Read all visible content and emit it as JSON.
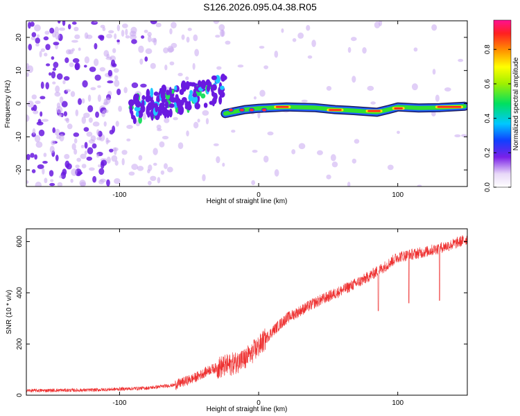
{
  "title": "S126.2026.095.04.38.R05",
  "colors": {
    "snr_line": "#ee3030",
    "ridge_core": "#ff2020",
    "ridge_mid": "#30e030",
    "ridge_edge": "#2060ff",
    "blob_dark": "#6a1ae0",
    "blob_light": "#c8a8f0"
  },
  "chart_data": [
    {
      "type": "heatmap",
      "name": "spectrogram",
      "xlabel": "Height of straight line (km)",
      "ylabel": "Frequency (Hz)",
      "xlim": [
        -167,
        150
      ],
      "ylim": [
        -25,
        25
      ],
      "xticks": [
        -100,
        0,
        100
      ],
      "xtick_labels": [
        "-100",
        "0",
        "100"
      ],
      "yticks": [
        -20,
        -10,
        0,
        10,
        20
      ],
      "ytick_labels": [
        "-20",
        "-10",
        "0",
        "10",
        "20"
      ],
      "ridge_trace": [
        {
          "x": -24,
          "f": -3.0
        },
        {
          "x": -10,
          "f": -1.8
        },
        {
          "x": 0,
          "f": -1.4
        },
        {
          "x": 20,
          "f": -1.0
        },
        {
          "x": 40,
          "f": -1.2
        },
        {
          "x": 55,
          "f": -1.8
        },
        {
          "x": 65,
          "f": -2.0
        },
        {
          "x": 75,
          "f": -2.3
        },
        {
          "x": 85,
          "f": -2.6
        },
        {
          "x": 93,
          "f": -1.8
        },
        {
          "x": 100,
          "f": -1.0
        },
        {
          "x": 115,
          "f": -1.3
        },
        {
          "x": 130,
          "f": -1.2
        },
        {
          "x": 148,
          "f": -0.8
        }
      ],
      "colorbar": {
        "label": "Normalized spectral amplitude",
        "range": [
          0,
          0.97
        ],
        "ticks": [
          0.0,
          0.2,
          0.4,
          0.6,
          0.8
        ],
        "tick_labels": [
          "0.0",
          "0.2",
          "0.4",
          "0.6",
          "0.8"
        ]
      }
    },
    {
      "type": "line",
      "name": "snr",
      "xlabel": "Height of straight line (km)",
      "ylabel": "SNR (10 * v/v)",
      "xlim": [
        -167,
        150
      ],
      "ylim": [
        0,
        650
      ],
      "xticks": [
        -100,
        0,
        100
      ],
      "xtick_labels": [
        "-100",
        "0",
        "100"
      ],
      "yticks": [
        0,
        200,
        400,
        600
      ],
      "ytick_labels": [
        "0",
        "200",
        "400",
        "600"
      ],
      "trend": [
        {
          "x": -167,
          "y": 18
        },
        {
          "x": -120,
          "y": 20
        },
        {
          "x": -80,
          "y": 28
        },
        {
          "x": -60,
          "y": 40
        },
        {
          "x": -45,
          "y": 70
        },
        {
          "x": -35,
          "y": 100
        },
        {
          "x": -20,
          "y": 120
        },
        {
          "x": -10,
          "y": 140
        },
        {
          "x": 0,
          "y": 190
        },
        {
          "x": 10,
          "y": 250
        },
        {
          "x": 20,
          "y": 300
        },
        {
          "x": 40,
          "y": 360
        },
        {
          "x": 60,
          "y": 410
        },
        {
          "x": 75,
          "y": 450
        },
        {
          "x": 90,
          "y": 500
        },
        {
          "x": 100,
          "y": 540
        },
        {
          "x": 120,
          "y": 560
        },
        {
          "x": 140,
          "y": 590
        },
        {
          "x": 150,
          "y": 610
        }
      ],
      "dips": [
        {
          "x": 86,
          "y": 330
        },
        {
          "x": 108,
          "y": 360
        },
        {
          "x": 130,
          "y": 370
        }
      ]
    }
  ]
}
